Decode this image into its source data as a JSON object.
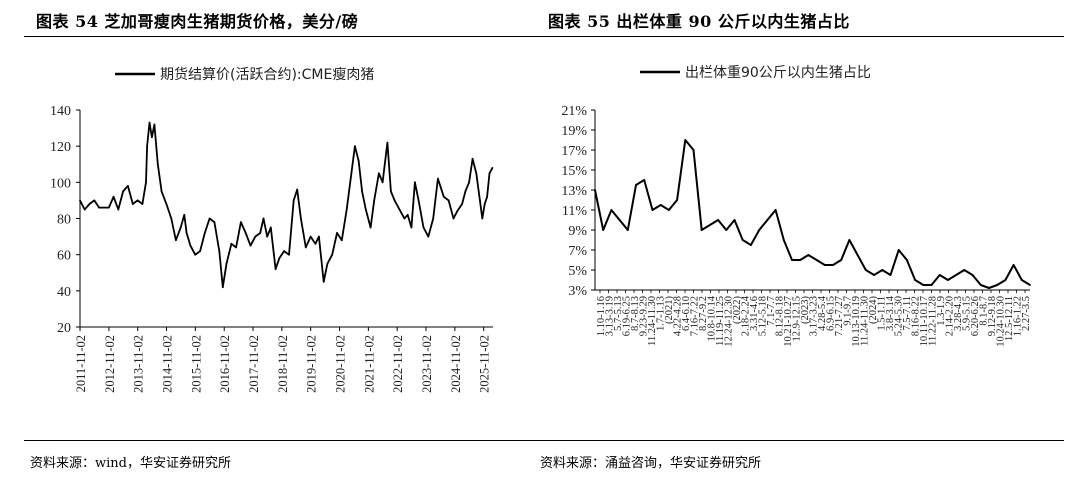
{
  "left_panel": {
    "title": "图表 54 芝加哥瘦肉生猪期货价格，美分/磅",
    "source": "资料来源：wind，华安证券研究所"
  },
  "right_panel": {
    "title": "图表 55 出栏体重 90 公斤以内生猪占比",
    "source": "资料来源：涌益咨询，华安证券研究所"
  },
  "chart_data": [
    {
      "type": "line",
      "legend": "期货结算价(活跃合约):CME瘦肉猪",
      "legend_position": "top",
      "grid": false,
      "ylim": [
        20,
        140
      ],
      "yticks": [
        20,
        40,
        60,
        80,
        100,
        120,
        140
      ],
      "x_ticks": [
        "2011-11-02",
        "2012-11-02",
        "2013-11-02",
        "2014-11-02",
        "2015-11-02",
        "2016-11-02",
        "2017-11-02",
        "2018-11-02",
        "2019-11-02",
        "2020-11-02",
        "2021-11-02",
        "2022-11-02",
        "2023-11-02",
        "2024-11-02",
        "2025-11-02"
      ],
      "series": [
        {
          "color": "#000000",
          "points": [
            [
              "2011-11-02",
              90
            ],
            [
              "2012-01-01",
              85
            ],
            [
              "2012-03-01",
              88
            ],
            [
              "2012-05-01",
              90
            ],
            [
              "2012-07-01",
              86
            ],
            [
              "2012-09-01",
              86
            ],
            [
              "2012-11-01",
              86
            ],
            [
              "2013-01-01",
              92
            ],
            [
              "2013-03-01",
              85
            ],
            [
              "2013-05-01",
              95
            ],
            [
              "2013-07-01",
              98
            ],
            [
              "2013-09-01",
              88
            ],
            [
              "2013-11-01",
              90
            ],
            [
              "2014-01-01",
              88
            ],
            [
              "2014-02-15",
              100
            ],
            [
              "2014-03-01",
              120
            ],
            [
              "2014-04-01",
              133
            ],
            [
              "2014-05-01",
              125
            ],
            [
              "2014-06-01",
              132
            ],
            [
              "2014-07-15",
              110
            ],
            [
              "2014-09-01",
              95
            ],
            [
              "2014-11-01",
              88
            ],
            [
              "2015-01-01",
              80
            ],
            [
              "2015-03-01",
              68
            ],
            [
              "2015-05-01",
              75
            ],
            [
              "2015-06-15",
              82
            ],
            [
              "2015-07-15",
              72
            ],
            [
              "2015-09-01",
              65
            ],
            [
              "2015-11-01",
              60
            ],
            [
              "2016-01-01",
              62
            ],
            [
              "2016-03-01",
              72
            ],
            [
              "2016-05-01",
              80
            ],
            [
              "2016-07-01",
              78
            ],
            [
              "2016-09-01",
              62
            ],
            [
              "2016-10-15",
              42
            ],
            [
              "2016-12-01",
              55
            ],
            [
              "2017-02-01",
              66
            ],
            [
              "2017-04-01",
              64
            ],
            [
              "2017-06-01",
              78
            ],
            [
              "2017-08-01",
              72
            ],
            [
              "2017-10-01",
              65
            ],
            [
              "2017-12-01",
              70
            ],
            [
              "2018-02-01",
              72
            ],
            [
              "2018-03-15",
              80
            ],
            [
              "2018-05-01",
              70
            ],
            [
              "2018-06-15",
              75
            ],
            [
              "2018-08-15",
              52
            ],
            [
              "2018-10-01",
              58
            ],
            [
              "2018-12-01",
              62
            ],
            [
              "2019-02-01",
              60
            ],
            [
              "2019-04-01",
              90
            ],
            [
              "2019-05-15",
              96
            ],
            [
              "2019-07-01",
              80
            ],
            [
              "2019-09-01",
              64
            ],
            [
              "2019-11-01",
              70
            ],
            [
              "2020-01-01",
              66
            ],
            [
              "2020-02-15",
              70
            ],
            [
              "2020-04-15",
              45
            ],
            [
              "2020-06-01",
              55
            ],
            [
              "2020-08-01",
              60
            ],
            [
              "2020-10-01",
              72
            ],
            [
              "2020-12-01",
              68
            ],
            [
              "2021-02-01",
              85
            ],
            [
              "2021-04-01",
              105
            ],
            [
              "2021-05-15",
              120
            ],
            [
              "2021-07-01",
              112
            ],
            [
              "2021-08-15",
              95
            ],
            [
              "2021-10-01",
              85
            ],
            [
              "2021-12-01",
              75
            ],
            [
              "2022-01-15",
              90
            ],
            [
              "2022-03-15",
              105
            ],
            [
              "2022-05-01",
              100
            ],
            [
              "2022-07-01",
              122
            ],
            [
              "2022-08-15",
              95
            ],
            [
              "2022-10-01",
              90
            ],
            [
              "2022-12-01",
              85
            ],
            [
              "2023-02-01",
              80
            ],
            [
              "2023-03-15",
              82
            ],
            [
              "2023-05-01",
              75
            ],
            [
              "2023-06-15",
              100
            ],
            [
              "2023-08-01",
              90
            ],
            [
              "2023-10-01",
              75
            ],
            [
              "2023-12-01",
              70
            ],
            [
              "2024-02-01",
              80
            ],
            [
              "2024-04-01",
              102
            ],
            [
              "2024-06-15",
              92
            ],
            [
              "2024-08-15",
              90
            ],
            [
              "2024-10-15",
              80
            ],
            [
              "2024-12-01",
              84
            ],
            [
              "2025-02-01",
              88
            ],
            [
              "2025-03-15",
              95
            ],
            [
              "2025-05-01",
              100
            ],
            [
              "2025-06-15",
              113
            ],
            [
              "2025-08-01",
              105
            ],
            [
              "2025-09-15",
              90
            ],
            [
              "2025-10-15",
              80
            ],
            [
              "2025-11-15",
              88
            ],
            [
              "2025-12-15",
              92
            ],
            [
              "2026-01-15",
              105
            ],
            [
              "2026-02-20",
              108
            ]
          ]
        }
      ]
    },
    {
      "type": "line",
      "legend": "出栏体重90公斤以内生猪占比",
      "legend_position": "top",
      "grid": false,
      "ylim": [
        3,
        21
      ],
      "yticks": [
        "3%",
        "5%",
        "7%",
        "9%",
        "11%",
        "13%",
        "15%",
        "17%",
        "19%",
        "21%"
      ],
      "x_ticks": [
        "1.10-1.16",
        "3.13-3.19",
        "5.7-5.13",
        "6.19-6.25",
        "8.7-8.13",
        "9.23-9.29",
        "11.24-11.30",
        "1.7-1.13",
        "(2021)",
        "4.22-4.28",
        "6.4-6.10",
        "7.16-7.22",
        "8.27-9.2",
        "10.8-10.14",
        "11.19-11.25",
        "12.24-12.30",
        "(2022)",
        "2.18-2.24",
        "3.31-4.6",
        "5.12-5.18",
        "7.1-7.7",
        "8.12-8.18",
        "10.21-10.27",
        "12.9-12.15",
        "(2023)",
        "3.17-3.23",
        "4.28-5.4",
        "6.9-6.15",
        "7.21-7.27",
        "9.1-9.7",
        "10.13-10.19",
        "11.24-11.30",
        "(2024)",
        "1.5-1.11",
        "3.8-3.14",
        "5.24-5.30",
        "7.5-7.11",
        "8.16-8.22",
        "10.11-10.17",
        "11.22-11.28",
        "1.3-1.9",
        "2.14-2.20",
        "3.28-4.3",
        "5.9-5.15",
        "6.20-6.26",
        "8.1-8.7",
        "9.12-9.18",
        "10.24-10.30",
        "12.5-12.11",
        "1.16-1.22",
        "2.27-3.5"
      ],
      "series": [
        {
          "color": "#000000",
          "y": [
            13.0,
            9.0,
            11.0,
            10.0,
            9.0,
            13.5,
            14.0,
            11.0,
            11.5,
            11.0,
            12.0,
            18.0,
            17.0,
            9.0,
            9.5,
            10.0,
            9.0,
            10.0,
            8.0,
            7.5,
            9.0,
            10.0,
            11.0,
            8.0,
            6.0,
            6.0,
            6.5,
            6.0,
            5.5,
            5.5,
            6.0,
            8.0,
            6.5,
            5.0,
            4.5,
            5.0,
            4.5,
            7.0,
            6.0,
            4.0,
            3.5,
            3.5,
            4.5,
            4.0,
            4.5,
            5.0,
            4.5,
            3.5,
            3.2,
            3.5,
            4.0,
            5.5,
            4.0,
            3.5
          ]
        }
      ]
    }
  ]
}
